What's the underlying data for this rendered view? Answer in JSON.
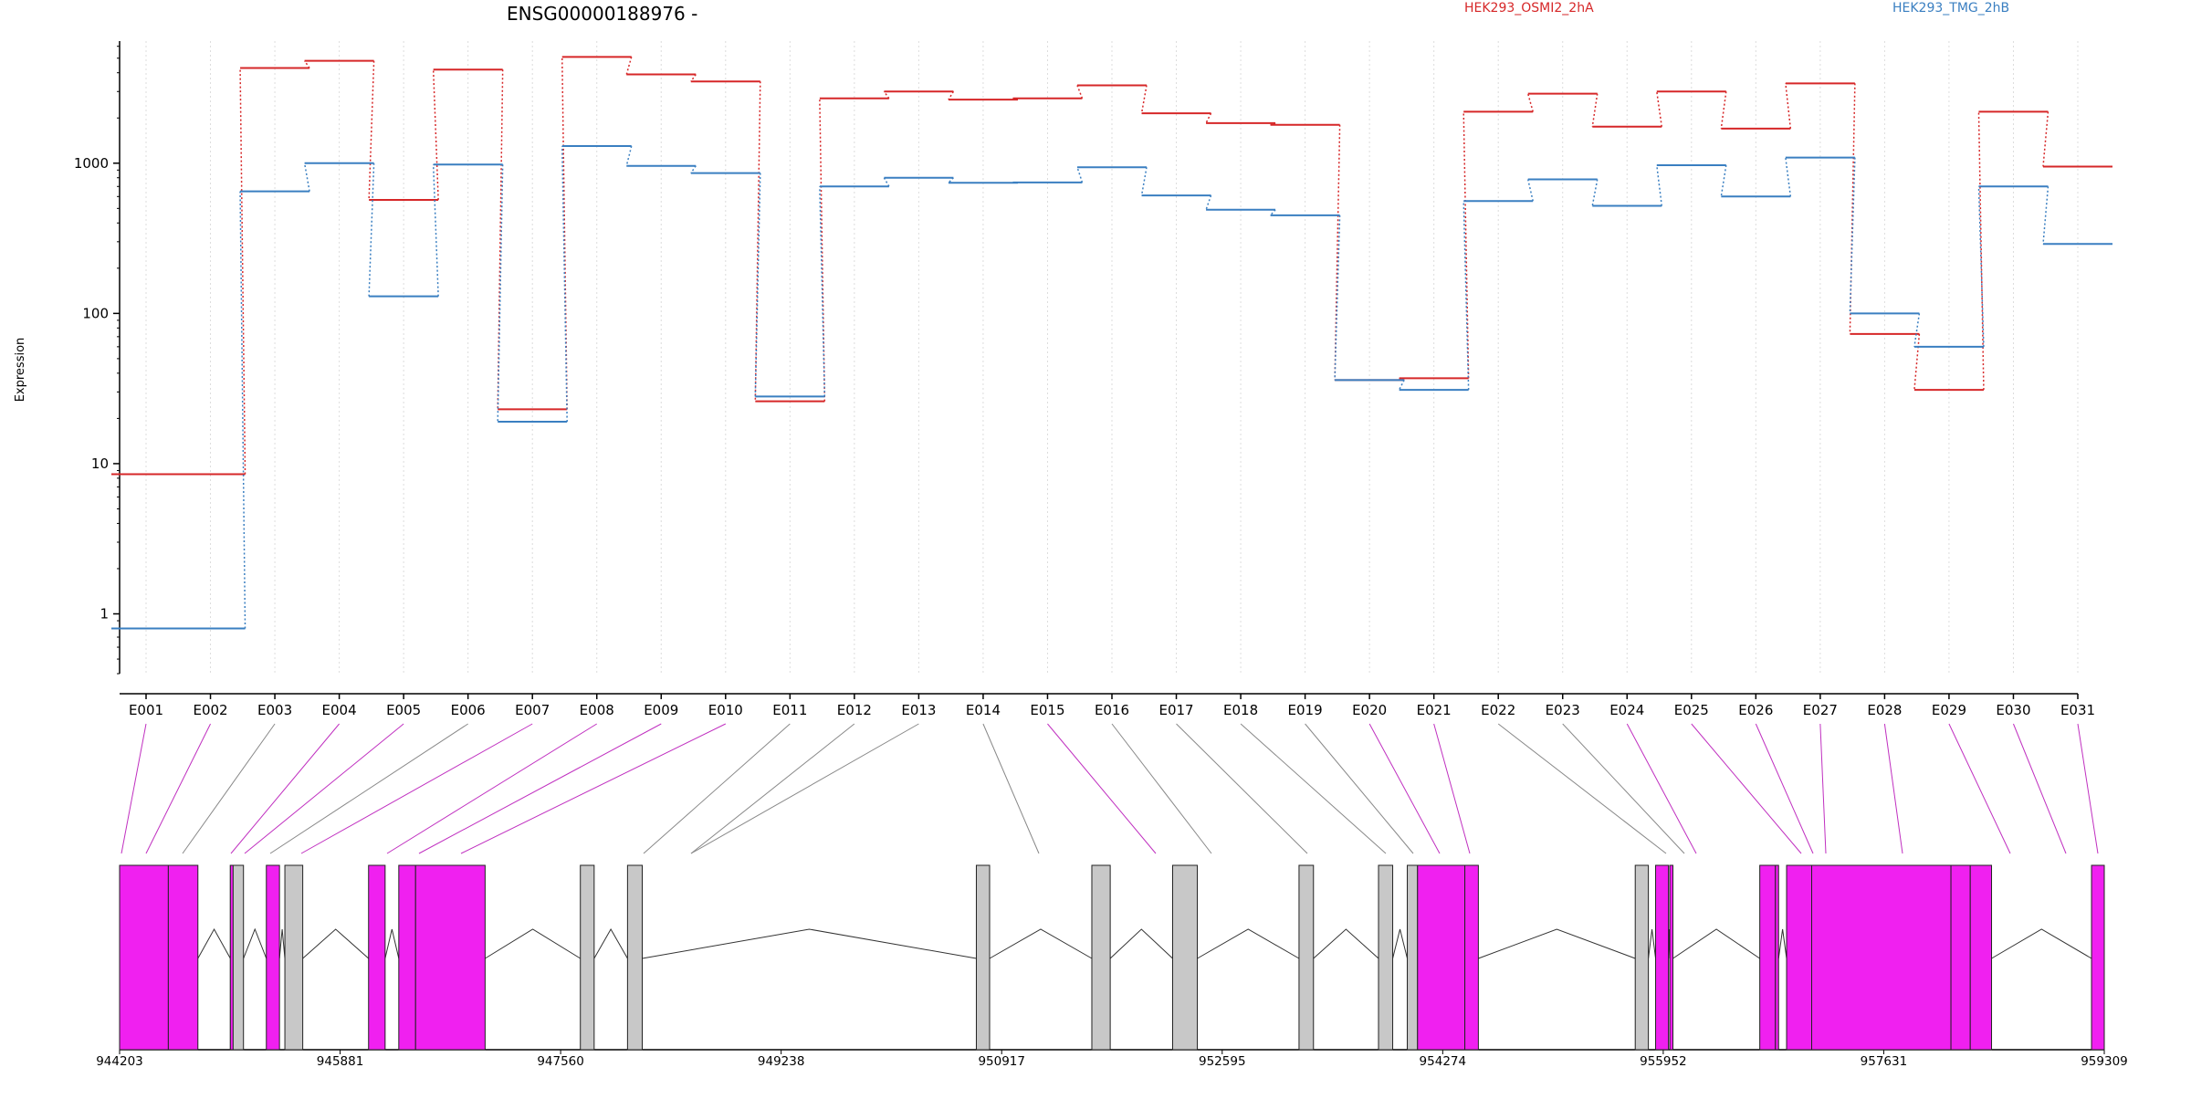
{
  "chart_data": {
    "type": "line",
    "title": "ENSG00000188976 -",
    "ylabel": "Expression",
    "xlabel": "",
    "y_scale": "log",
    "ylim": [
      0.4,
      6500
    ],
    "y_ticks": [
      1,
      10,
      100,
      1000
    ],
    "y_tick_labels": [
      "1",
      "10",
      "100",
      "1000"
    ],
    "grid": "vertical dotted lines at each exon",
    "legend_placement": "top-right",
    "categories": [
      "E001",
      "E002",
      "E003",
      "E004",
      "E005",
      "E006",
      "E007",
      "E008",
      "E009",
      "E010",
      "E011",
      "E012",
      "E013",
      "E014",
      "E015",
      "E016",
      "E017",
      "E018",
      "E019",
      "E020",
      "E021",
      "E022",
      "E023",
      "E024",
      "E025",
      "E026",
      "E027",
      "E028",
      "E029",
      "E030",
      "E031"
    ],
    "series": [
      {
        "name": "HEK293_OSMI2_2hA",
        "color": "#d62728",
        "values": [
          8.5,
          8.5,
          4300,
          4800,
          570,
          4200,
          23,
          5100,
          3900,
          3500,
          26,
          2700,
          3000,
          2650,
          2700,
          3300,
          2150,
          1850,
          1800,
          36,
          37,
          2200,
          2900,
          1750,
          3000,
          1700,
          3400,
          73,
          31,
          2200,
          950
        ]
      },
      {
        "name": "HEK293_TMG_2hB",
        "color": "#3a7fc1",
        "values": [
          0.8,
          0.8,
          650,
          1000,
          130,
          980,
          19,
          1300,
          960,
          860,
          28,
          700,
          800,
          740,
          745,
          940,
          610,
          490,
          450,
          36,
          31,
          560,
          780,
          520,
          970,
          600,
          1090,
          100,
          60,
          700,
          290
        ]
      }
    ],
    "gene_model": {
      "coordinate_ticks": [
        "944203",
        "945881",
        "947560",
        "949238",
        "950917",
        "952595",
        "954274",
        "955952",
        "957631",
        "959309"
      ],
      "highlight_color": "#f020f0",
      "exon_color": "#c8c8c8",
      "highlighted_exons": [
        "E001",
        "E002",
        "E004",
        "E005",
        "E007",
        "E008",
        "E009",
        "E010",
        "E015",
        "E020",
        "E021",
        "E024",
        "E025",
        "E026",
        "E027",
        "E028",
        "E029",
        "E030",
        "E031"
      ]
    }
  }
}
